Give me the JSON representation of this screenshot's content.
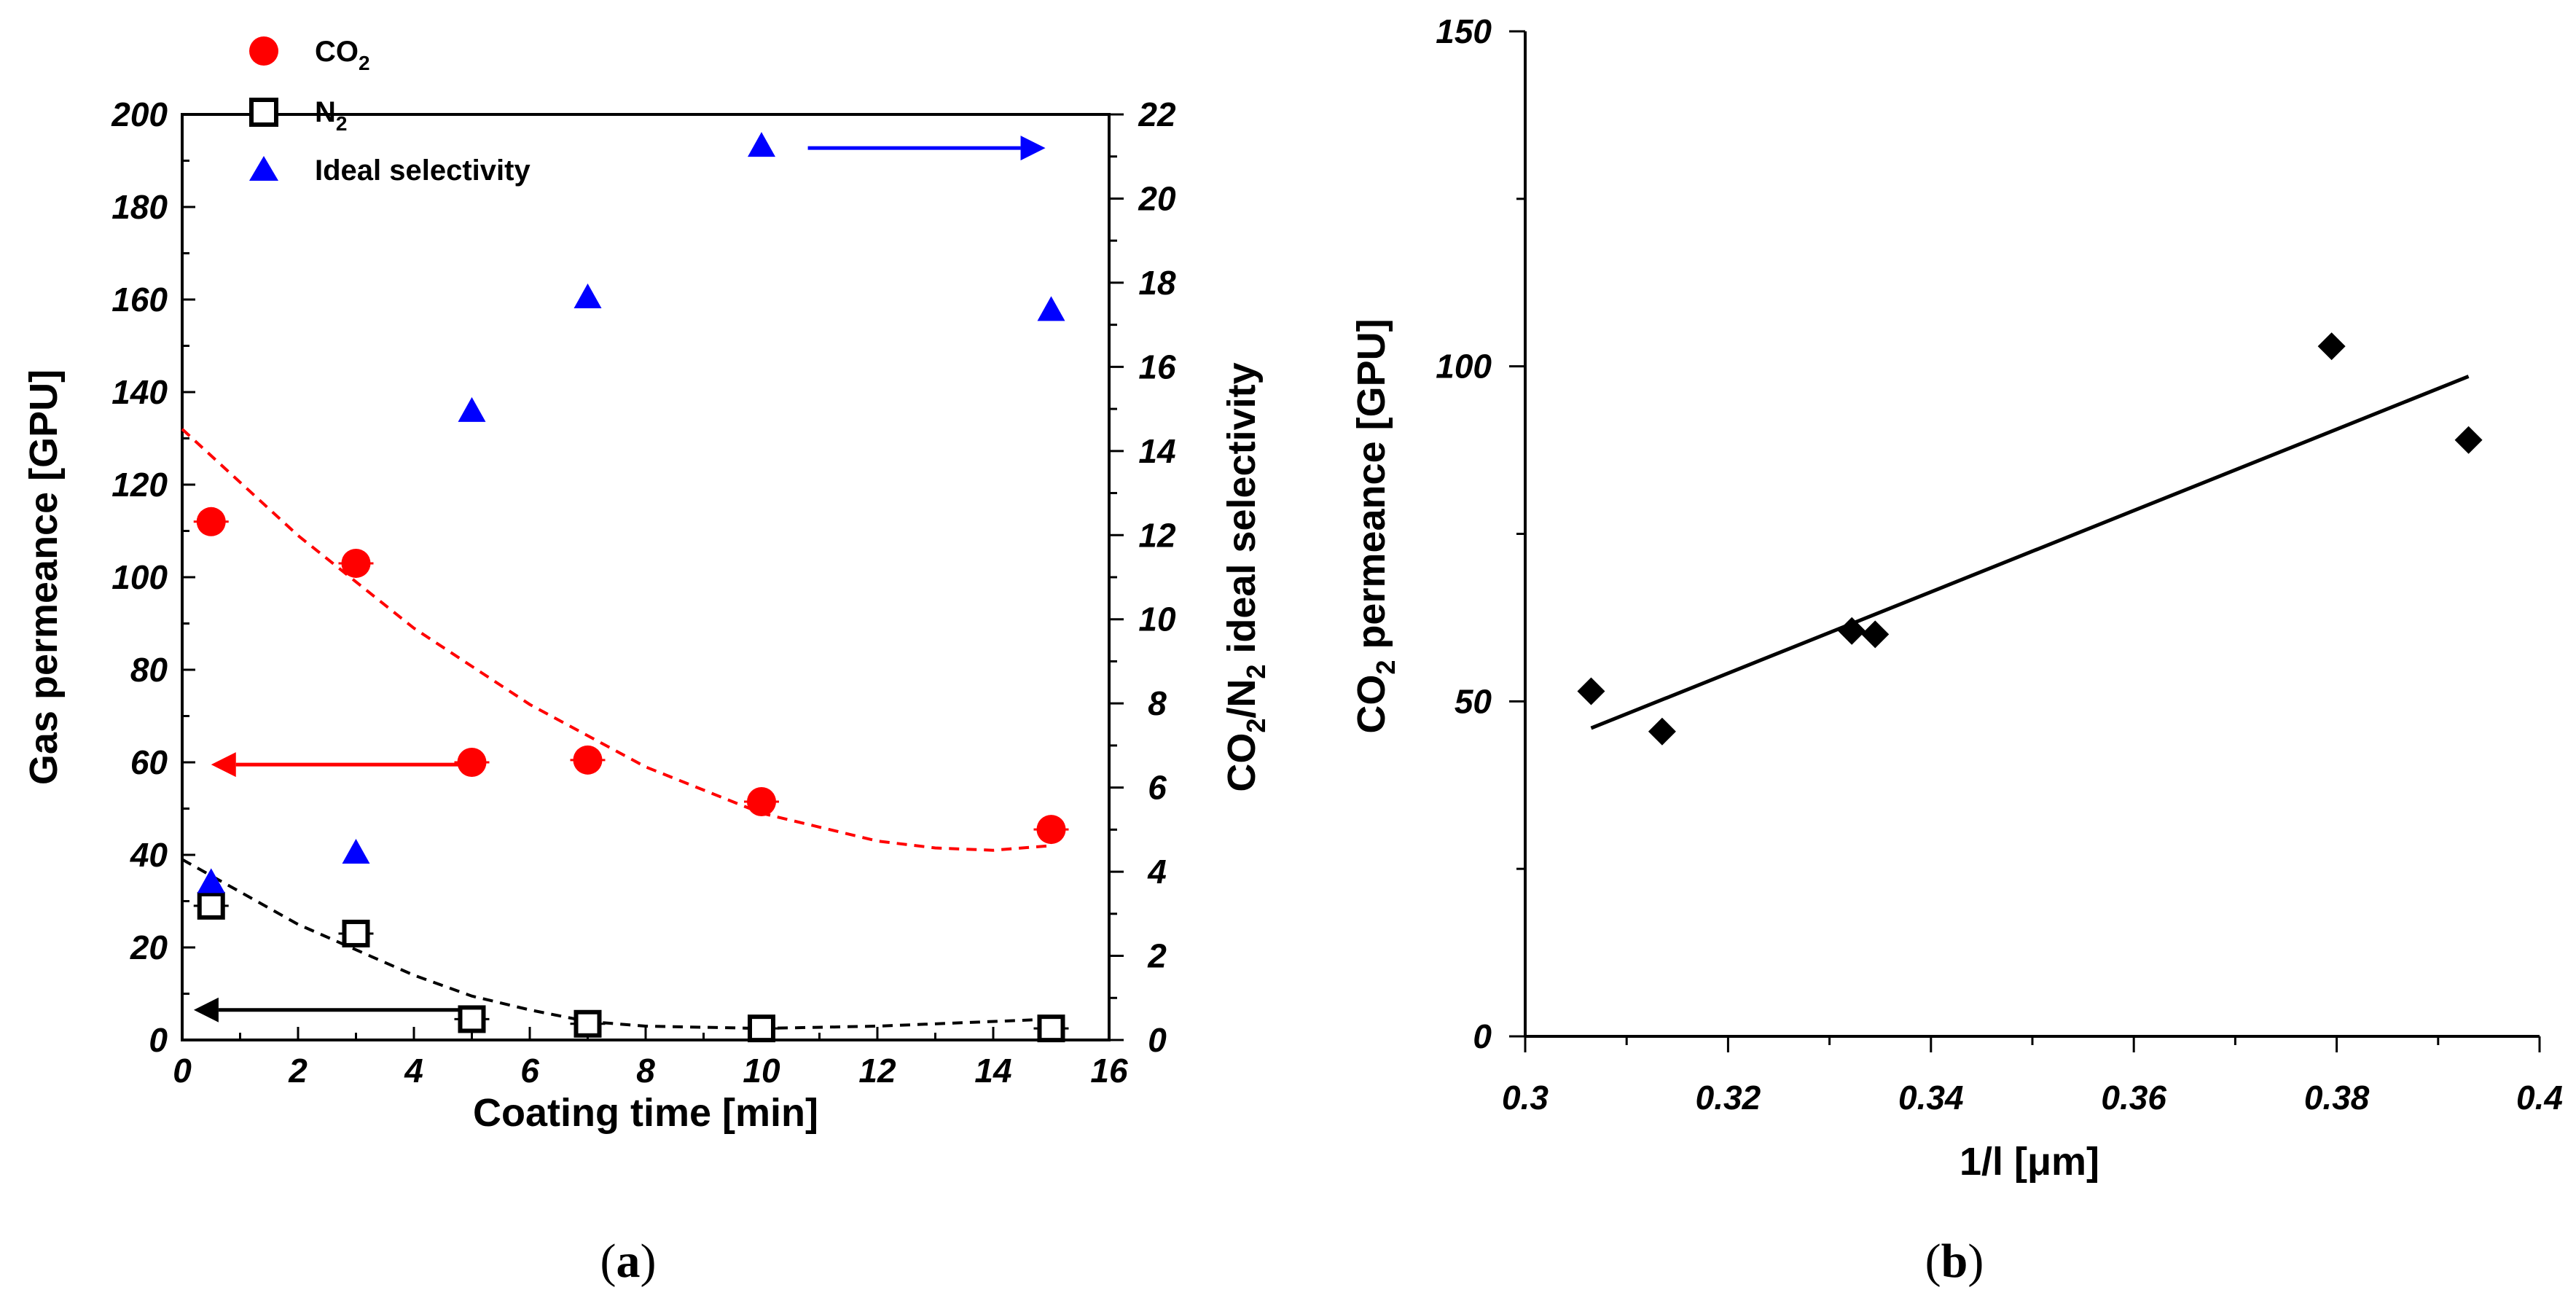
{
  "panels": {
    "a_label": "a",
    "b_label": "b"
  },
  "chart_data": [
    {
      "id": "a",
      "type": "scatter",
      "xlabel": "Coating time [min]",
      "ylabel": "Gas permeance [GPU]",
      "y2label_parts": [
        "CO",
        "2",
        "/N",
        "2",
        " ideal selectivity"
      ],
      "xlim": [
        0,
        16
      ],
      "ylim": [
        0,
        200
      ],
      "y2lim": [
        0,
        22
      ],
      "xticks": [
        "0",
        "2",
        "4",
        "6",
        "8",
        "10",
        "12",
        "14",
        "16"
      ],
      "yticks": [
        "0",
        "20",
        "40",
        "60",
        "80",
        "100",
        "120",
        "140",
        "160",
        "180",
        "200"
      ],
      "y2ticks": [
        "0",
        "2",
        "4",
        "6",
        "8",
        "10",
        "12",
        "14",
        "16",
        "18",
        "20",
        "22"
      ],
      "legend": [
        {
          "label": "CO",
          "sub": "2",
          "marker": "circle",
          "color": "#ff0000"
        },
        {
          "label": "N",
          "sub": "2",
          "marker": "open-square",
          "color": "#000000"
        },
        {
          "label": "Ideal selectivity",
          "sub": "",
          "marker": "triangle",
          "color": "#0000ff"
        }
      ],
      "series": [
        {
          "name": "CO2",
          "axis": "left",
          "marker": "circle",
          "color": "#ff0000",
          "x": [
            0.5,
            3,
            5,
            7,
            10,
            15
          ],
          "y": [
            112,
            103,
            60,
            60.5,
            51.5,
            45.5
          ]
        },
        {
          "name": "N2",
          "axis": "left",
          "marker": "open-square",
          "color": "#000000",
          "x": [
            0.5,
            3,
            5,
            7,
            10,
            15
          ],
          "y": [
            29,
            23,
            4.5,
            3.5,
            2.5,
            2.5
          ]
        },
        {
          "name": "Ideal selectivity",
          "axis": "right",
          "marker": "triangle",
          "color": "#0000ff",
          "x": [
            0.5,
            3,
            5,
            7,
            10,
            15
          ],
          "y": [
            3.7,
            4.4,
            14.9,
            17.6,
            21.2,
            17.3
          ]
        }
      ],
      "fits": [
        {
          "series": "CO2",
          "color": "#ff0000",
          "dash": true,
          "axis": "left",
          "x": [
            0,
            2,
            4,
            6,
            8,
            10,
            12,
            13,
            14,
            15
          ],
          "y": [
            132,
            109,
            89,
            72.5,
            59,
            49,
            43,
            41.5,
            41,
            42
          ]
        },
        {
          "series": "N2",
          "color": "#000000",
          "dash": true,
          "axis": "left",
          "x": [
            0,
            1,
            2,
            3,
            4,
            5,
            6,
            7,
            8,
            10,
            12,
            15
          ],
          "y": [
            39,
            32,
            25,
            19.5,
            14,
            9.5,
            6.5,
            4,
            3,
            2.5,
            3,
            4.5
          ]
        }
      ],
      "arrows": [
        {
          "color": "#ff0000",
          "axis": "left",
          "x_from": 5,
          "x_to": 0.5,
          "y": 59.5
        },
        {
          "color": "#000000",
          "axis": "left",
          "x_from": 5,
          "x_to": 0.2,
          "y": 6.5
        },
        {
          "color": "#0000ff",
          "axis": "right",
          "x_from": 10.8,
          "x_to": 14.9,
          "y": 21.2
        }
      ]
    },
    {
      "id": "b",
      "type": "scatter",
      "xlabel": "1/l [μm]",
      "ylabel_parts": [
        "CO",
        "2",
        " permeance [GPU]"
      ],
      "xlim": [
        0.3,
        0.4
      ],
      "ylim": [
        0,
        150
      ],
      "xticks": [
        "0.3",
        "0.32",
        "0.34",
        "0.36",
        "0.38",
        "0.4"
      ],
      "yticks": [
        "0",
        "50",
        "100",
        "150"
      ],
      "series": [
        {
          "name": "CO2 permeance",
          "marker": "diamond",
          "color": "#000000",
          "x": [
            0.3065,
            0.3135,
            0.3322,
            0.3345,
            0.3795,
            0.393
          ],
          "y": [
            51.5,
            45.5,
            60.5,
            60,
            103,
            89
          ]
        }
      ],
      "fit": {
        "type": "linear",
        "color": "#000000",
        "x": [
          0.3065,
          0.393
        ],
        "y": [
          46,
          98.5
        ]
      }
    }
  ]
}
